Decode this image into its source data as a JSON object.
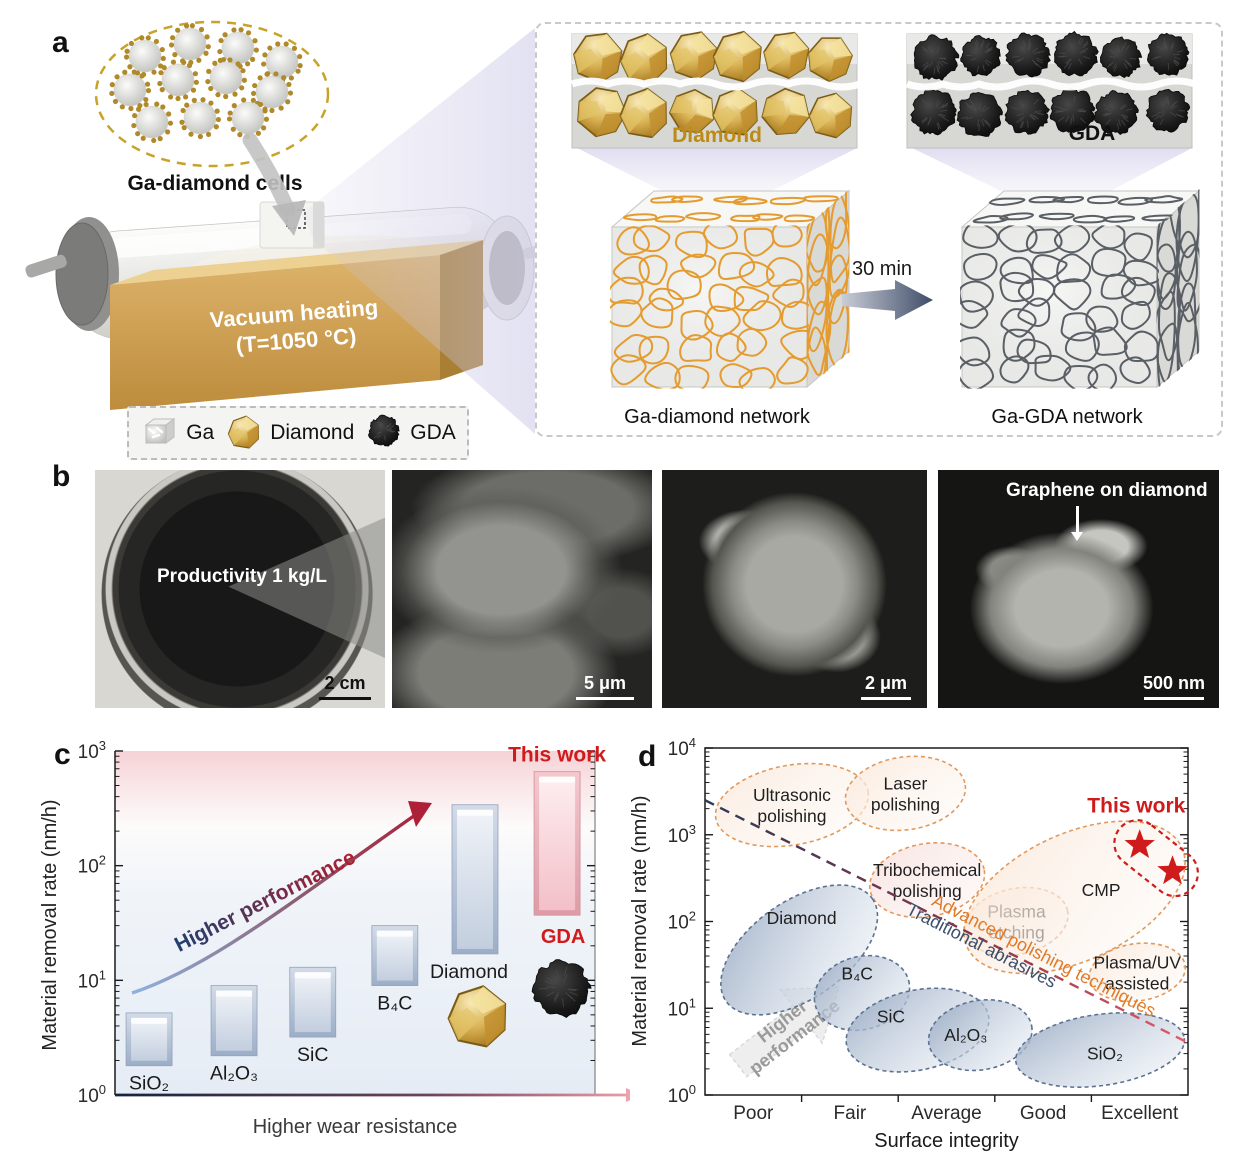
{
  "figure": {
    "panels": {
      "a": "a",
      "b": "b",
      "c": "c",
      "d": "d"
    },
    "panel_a": {
      "cells_label": "Ga-diamond cells",
      "furnace_line1": "Vacuum heating",
      "furnace_line2": "(T=1050 °C)",
      "legend": [
        {
          "icon": "ga-cube-icon",
          "label": "Ga"
        },
        {
          "icon": "diamond-icon",
          "label": "Diamond"
        },
        {
          "icon": "gda-ball-icon",
          "label": "GDA"
        }
      ],
      "inset": {
        "diamond_label": "Diamond",
        "gda_label": "GDA",
        "duration_label": "30 min",
        "left_network_label": "Ga-diamond network",
        "right_network_label": "Ga-GDA network"
      }
    },
    "panel_b": {
      "photo_caption": "Productivity 1 kg/L",
      "photo_scale": "2 cm",
      "sem1_scale": "5 μm",
      "sem2_scale": "2 μm",
      "sem3_caption": "Graphene on diamond",
      "sem3_scale": "500 nm"
    }
  },
  "colors": {
    "accent_red": "#cf1b1b",
    "gold": "#bb8b15",
    "advanced_orange": "#e07b2a",
    "traditional_navy": "#3d4f6b",
    "advanced_stroke": "#e2995c",
    "traditional_stroke": "#5d7291"
  },
  "chart_data": [
    {
      "panel": "c",
      "type": "bar",
      "yscale": "log",
      "ylim": [
        1,
        1000
      ],
      "ylabel": "Material removal rate (nm/h)",
      "xlabel": "Higher wear resistance",
      "performance_label": "Higher performance",
      "this_work_label": "This work",
      "bars": [
        {
          "name": "SiO₂",
          "x": 0.071,
          "range": [
            1.8,
            5.2
          ]
        },
        {
          "name": "Al₂O₃",
          "x": 0.248,
          "range": [
            2.2,
            9
          ]
        },
        {
          "name": "SiC",
          "x": 0.412,
          "range": [
            3.2,
            13
          ]
        },
        {
          "name": "B₄C",
          "x": 0.583,
          "range": [
            9,
            30
          ]
        },
        {
          "name": "Diamond",
          "x": 0.75,
          "range": [
            17,
            340
          ],
          "icon": "diamond-icon"
        },
        {
          "name": "GDA",
          "x": 0.921,
          "range": [
            37,
            660
          ],
          "highlight": true,
          "icon": "gda-ball-icon"
        }
      ]
    },
    {
      "panel": "d",
      "type": "scatter-regions",
      "yscale": "log",
      "ylim": [
        1,
        10000
      ],
      "ylabel": "Material removal rate (nm/h)",
      "xlabel": "Surface integrity",
      "x_categories": [
        "Poor",
        "Fair",
        "Average",
        "Good",
        "Excellent"
      ],
      "separator": {
        "from_y": 2500,
        "to_y": 4,
        "label_above": "Advanced polishing techniques",
        "label_below": "Traditional abrasives",
        "above_pos": {
          "x": 0.696,
          "y": 35
        },
        "below_pos": {
          "x": 0.567,
          "y": 46
        }
      },
      "performance_arrow": {
        "lines": [
          "Higher",
          "performance"
        ],
        "x": 0.17,
        "y": 6,
        "rot": -38
      },
      "this_work": {
        "label": "This work",
        "label_pos": {
          "x": 0.893,
          "y": 1800
        },
        "stars": [
          {
            "x": 0.9,
            "y": 760
          },
          {
            "x": 0.968,
            "y": 380
          }
        ]
      },
      "regions": [
        {
          "label_lines": [
            "Ultrasonic",
            "polishing"
          ],
          "group": "advanced",
          "x": 0.18,
          "y": 2200,
          "rx": 0.16,
          "ry": 0.46,
          "rot": -10
        },
        {
          "label_lines": [
            "Laser",
            "polishing"
          ],
          "group": "advanced",
          "x": 0.415,
          "y": 3000,
          "rx": 0.125,
          "ry": 0.42,
          "rot": -8
        },
        {
          "label_lines": [
            "Tribochemical",
            "polishing"
          ],
          "group": "advanced",
          "tint": "pink",
          "x": 0.46,
          "y": 300,
          "rx": 0.12,
          "ry": 0.42,
          "rot": -10
        },
        {
          "label_lines": [
            "Plasma",
            "etching"
          ],
          "group": "advanced",
          "x": 0.645,
          "y": 100,
          "rx": 0.108,
          "ry": 0.38,
          "rot": -12
        },
        {
          "label_lines": [
            "CMP"
          ],
          "group": "advanced",
          "x": 0.765,
          "y": 190,
          "rx": 0.245,
          "ry": 0.73,
          "rot": -25,
          "label_at": {
            "x": 0.82,
            "y": 230
          }
        },
        {
          "label_lines": [
            "Plasma/UV",
            "assisted"
          ],
          "group": "advanced",
          "x": 0.895,
          "y": 26,
          "rx": 0.1,
          "ry": 0.33,
          "rot": -8
        },
        {
          "label_lines": [
            "Diamond"
          ],
          "group": "traditional",
          "x": 0.195,
          "y": 47,
          "rx": 0.185,
          "ry": 0.56,
          "rot": -35,
          "label_at": {
            "x": 0.2,
            "y": 110
          }
        },
        {
          "label_lines": [
            "B₄C"
          ],
          "group": "traditional",
          "x": 0.325,
          "y": 15,
          "rx": 0.1,
          "ry": 0.42,
          "rot": -15,
          "label_at": {
            "x": 0.315,
            "y": 25
          }
        },
        {
          "label_lines": [
            "SiC"
          ],
          "group": "traditional",
          "x": 0.44,
          "y": 5.6,
          "rx": 0.15,
          "ry": 0.46,
          "rot": -12,
          "label_at": {
            "x": 0.385,
            "y": 8
          }
        },
        {
          "label_lines": [
            "Al₂O₃"
          ],
          "group": "traditional",
          "x": 0.57,
          "y": 4.9,
          "rx": 0.108,
          "ry": 0.4,
          "rot": -10,
          "label_at": {
            "x": 0.54,
            "y": 4.9
          }
        },
        {
          "label_lines": [
            "SiO₂"
          ],
          "group": "traditional",
          "x": 0.818,
          "y": 3.3,
          "rx": 0.176,
          "ry": 0.41,
          "rot": -8,
          "label_at": {
            "x": 0.828,
            "y": 3.0
          }
        }
      ]
    }
  ]
}
